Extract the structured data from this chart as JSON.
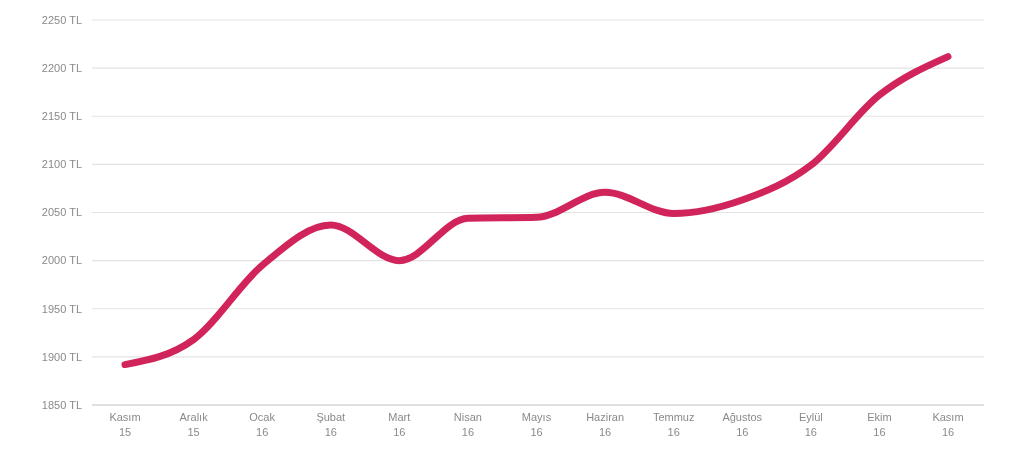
{
  "chart_data": {
    "type": "line",
    "categories": [
      "Kasım 15",
      "Aralık 15",
      "Ocak 16",
      "Şubat 16",
      "Mart 16",
      "Nisan 16",
      "Mayıs 16",
      "Haziran 16",
      "Temmuz 16",
      "Ağustos 16",
      "Eylül 16",
      "Ekim 16",
      "Kasım 16"
    ],
    "series": [
      {
        "color": "#d0245a",
        "values": [
          1892,
          1918,
          1995,
          2037,
          2000,
          2044,
          2045,
          2071,
          2049,
          2063,
          2099,
          2172,
          2212
        ]
      }
    ],
    "ylim": [
      1850,
      2250
    ],
    "yticks": [
      {
        "value": 1850,
        "label": "1850 TL"
      },
      {
        "value": 1900,
        "label": "1900 TL"
      },
      {
        "value": 1950,
        "label": "1950 TL"
      },
      {
        "value": 2000,
        "label": "2000 TL"
      },
      {
        "value": 2050,
        "label": "2050 TL"
      },
      {
        "value": 2100,
        "label": "2100 TL"
      },
      {
        "value": 2150,
        "label": "2150 TL"
      },
      {
        "value": 2200,
        "label": "2200 TL"
      },
      {
        "value": 2250,
        "label": "2250 TL"
      }
    ],
    "grid": "y",
    "marker": "none",
    "line_style": "solid"
  }
}
